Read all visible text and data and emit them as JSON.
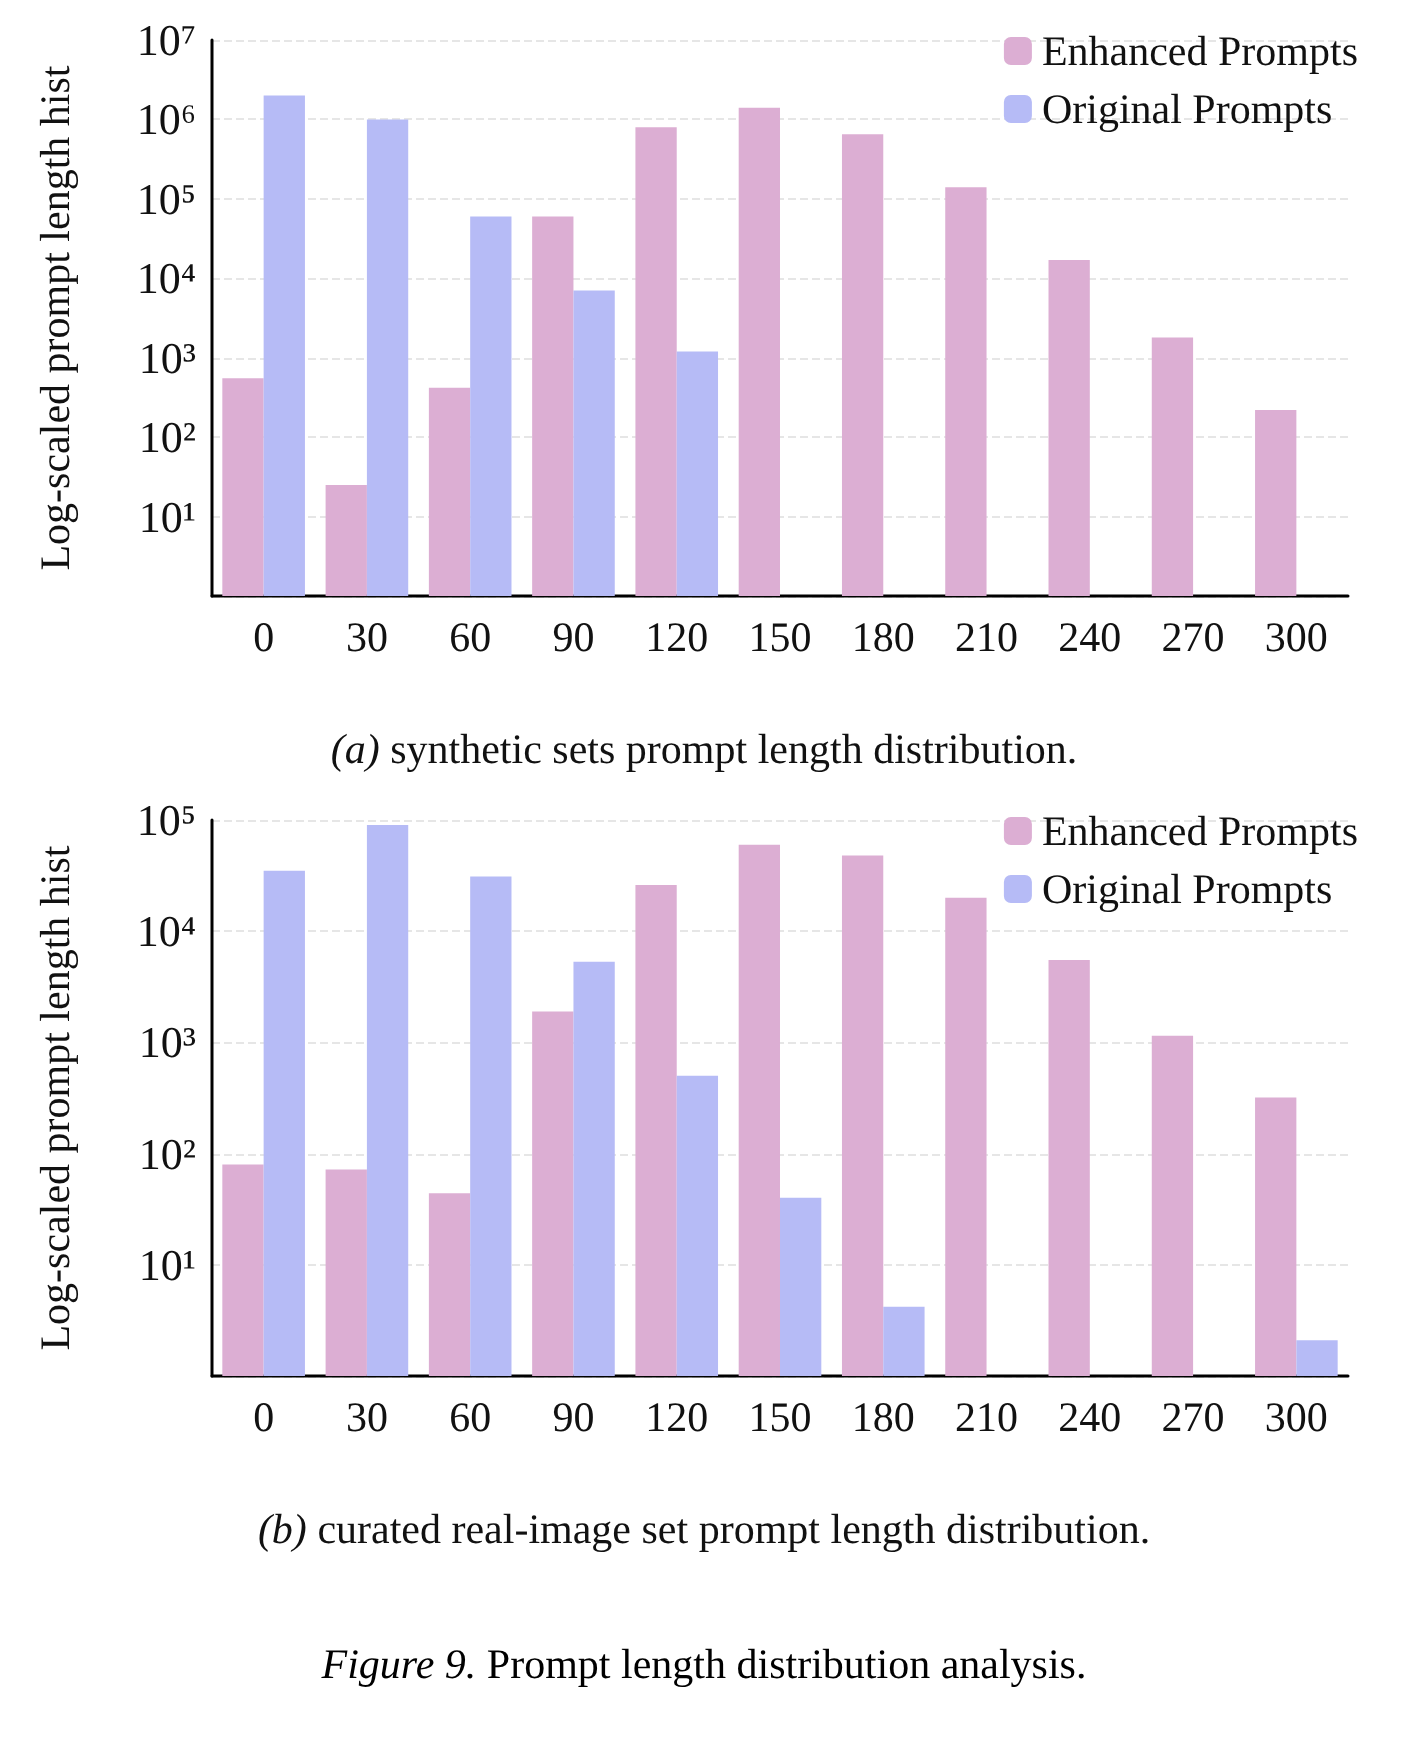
{
  "chart_data": [
    {
      "type": "bar",
      "title": "(a) synthetic sets prompt length distribution.",
      "ylabel": "Log-scaled prompt length hist",
      "categories": [
        "0",
        "30",
        "60",
        "90",
        "120",
        "150",
        "180",
        "210",
        "240",
        "270",
        "300"
      ],
      "series": [
        {
          "name": "Enhanced Prompts",
          "color": "#dcaed3",
          "values": [
            550,
            25,
            420,
            60000,
            800000,
            1400000,
            650000,
            140000,
            17000,
            1800,
            220
          ]
        },
        {
          "name": "Original Prompts",
          "color": "#b6bbf6",
          "values": [
            2000000,
            1000000,
            60000,
            7000,
            1200,
            null,
            null,
            null,
            null,
            null,
            null
          ]
        }
      ],
      "log": "y",
      "ylim": [
        1,
        10000000
      ],
      "yticks": [
        {
          "value": 10,
          "label": "10¹"
        },
        {
          "value": 100,
          "label": "10²"
        },
        {
          "value": 1000,
          "label": "10³"
        },
        {
          "value": 10000,
          "label": "10⁴"
        },
        {
          "value": 100000,
          "label": "10⁵"
        },
        {
          "value": 1000000,
          "label": "10⁶"
        },
        {
          "value": 10000000,
          "label": "10⁷"
        }
      ],
      "grid": "y",
      "legend": "top right"
    },
    {
      "type": "bar",
      "title": "(b) curated real-image set prompt length distribution.",
      "ylabel": "Log-scaled prompt length hist",
      "categories": [
        "0",
        "30",
        "60",
        "90",
        "120",
        "150",
        "180",
        "210",
        "240",
        "270",
        "300"
      ],
      "series": [
        {
          "name": "Enhanced Prompts",
          "color": "#dcaed3",
          "values": [
            80,
            72,
            44,
            1900,
            26000,
            60000,
            48000,
            20000,
            5500,
            1150,
            320
          ]
        },
        {
          "name": "Original Prompts",
          "color": "#b6bbf6",
          "values": [
            35000,
            90000,
            31000,
            5300,
            500,
            40,
            4.2,
            null,
            null,
            null,
            2.1
          ]
        }
      ],
      "log": "y",
      "ylim": [
        1,
        100000
      ],
      "yticks": [
        {
          "value": 10,
          "label": "10¹"
        },
        {
          "value": 100,
          "label": "10²"
        },
        {
          "value": 1000,
          "label": "10³"
        },
        {
          "value": 10000,
          "label": "10⁴"
        },
        {
          "value": 100000,
          "label": "10⁵"
        }
      ],
      "grid": "y",
      "legend": "top right",
      "annotations": [
        "Figure 9. Prompt length distribution analysis."
      ]
    }
  ]
}
